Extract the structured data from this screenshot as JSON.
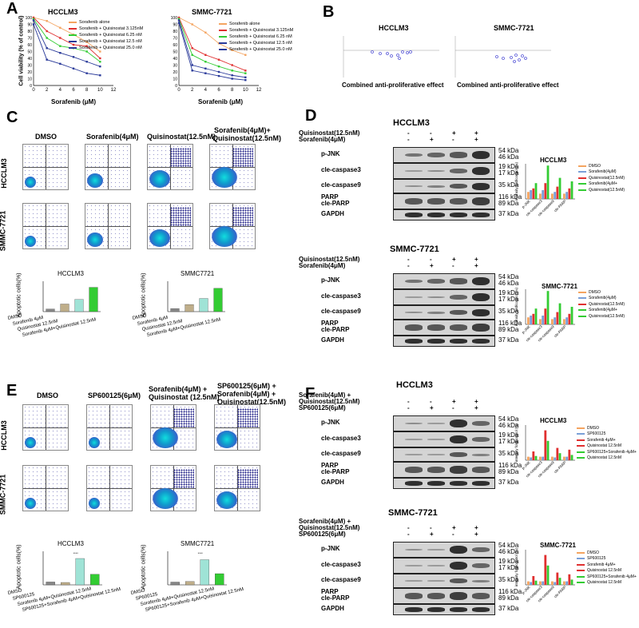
{
  "panels": {
    "A": "A",
    "B": "B",
    "C": "C",
    "D": "D",
    "E": "E",
    "F": "F"
  },
  "panelA": {
    "charts": [
      {
        "title": "HCCLM3",
        "ylabel": "Cell viability (% of control)",
        "xlabel": "Sorafenib (μM)",
        "yticks": [
          "0",
          "10",
          "20",
          "30",
          "40",
          "50",
          "60",
          "70",
          "80",
          "90",
          "100"
        ],
        "xticks": [
          "0",
          "2",
          "4",
          "6",
          "8",
          "10",
          "12"
        ]
      },
      {
        "title": "SMMC-7721",
        "ylabel": "",
        "xlabel": "Sorafenib (μM)",
        "yticks": [
          "0",
          "10",
          "20",
          "30",
          "40",
          "50",
          "60",
          "70",
          "80",
          "90",
          "100"
        ],
        "xticks": [
          "0",
          "2",
          "4",
          "6",
          "8",
          "10",
          "12"
        ]
      }
    ],
    "legend": [
      "Sorafenib alone",
      "Sorafenib + Quisinostat 3.125nM",
      "Sorafenib + Quisinostat 6.25 nM",
      "Sorafenib + Quisinostat 12.5 nM",
      "Sorafenib + Quisinostat 25.0 nM"
    ],
    "legend2": [
      "Sorafenib  alone",
      "Sorafenib + Quisinostat 3.125nM",
      "Sorafenib + Quisinostat 6.25 nM",
      "Sorafenib + Quisinostat 12.5 nM",
      "Sorafenib + Quisinostat 25.0 nM"
    ]
  },
  "panelB": {
    "titles": [
      "HCCLM3",
      "SMMC-7721"
    ],
    "xlabel": "Combined anti-proliferative effect"
  },
  "panelC": {
    "cols": [
      "DMSO",
      "Sorafenib(4μM)",
      "Quisinostat(12.5nM)",
      "Sorafenib(4μM)+",
      "Quisinostat(12.5nM)"
    ],
    "rows": [
      "HCCLM3",
      "SMMC-7721"
    ],
    "bar_titles": [
      "HCCLM3",
      "SMMC7721"
    ],
    "ylabel": "Apoptotic cells(%)",
    "cats": [
      "DMSO",
      "Sorafenib 4μM",
      "Quisinostat 12.5nM",
      "Sorafenib 4μM+Quisinostat 12.5nM"
    ]
  },
  "panelD": {
    "titles": [
      "HCCLM3",
      "SMMC-7721"
    ],
    "treat": [
      "Quisinostat(12.5nM)",
      "Sorafenib(4μM)"
    ],
    "signs1": [
      "-",
      "-",
      "+",
      "+"
    ],
    "signs2": [
      "-",
      "+",
      "-",
      "+"
    ],
    "rows": [
      "p-JNK",
      "cle-caspase3",
      "cle-caspase9",
      "PARP",
      "cle-PARP",
      "GAPDH"
    ],
    "kda": [
      "54 kDa",
      "46 kDa",
      "19 kDa",
      "17 kDa",
      "35 kDa",
      "116 kDa",
      "89 kDa",
      "37 kDa"
    ],
    "ylabel": "intensity fold/control (%)",
    "legend": [
      "DMSO",
      "Sorafenib(4μM)",
      "Quisinostat(12.5nM)",
      "Sorafenib(4μM+",
      "Quisinostat(12.5nM)"
    ]
  },
  "panelE": {
    "cols": [
      "DMSO",
      "SP600125(6μM)",
      "Sorafenib(4μM) +",
      "Quisinostat (12.5nM)",
      "SP600125(6μM) +",
      "Sorafenib(4μM) +",
      "Quisinostat(12.5nM)"
    ],
    "rows": [
      "HCCLM3",
      "SMMC-7721"
    ],
    "bar_titles": [
      "HCCLM3",
      "SMMC7721"
    ],
    "ylabel": "Apoptotic cells(%)",
    "cats": [
      "DMSO",
      "SP600125",
      "Sorafenib 4μM+Quisinostat 12.5nM",
      "SP600125+Sorafenib 4μM+Quisinostat 12.5nM"
    ],
    "sig": "****"
  },
  "panelF": {
    "titles": [
      "HCCLM3",
      "SMMC-7721"
    ],
    "treat": [
      "Sorafenib(4μM) +",
      "Quisinostat(12.5nM)",
      "SP600125(6μM)"
    ],
    "signs1": [
      "-",
      "-",
      "+",
      "+"
    ],
    "signs2": [
      "-",
      "+",
      "-",
      "+"
    ],
    "rows": [
      "p-JNK",
      "cle-caspase3",
      "cle-caspase9",
      "PARP",
      "cle-PARP",
      "GAPDH"
    ],
    "kda": [
      "54 kDa",
      "46 kDa",
      "19 kDa",
      "17 kDa",
      "35 kDa",
      "116 kDa",
      "89 kDa",
      "37 kDa"
    ],
    "ylabel": "intensity fold/control (%)",
    "legend": [
      "DMSO",
      "SP600125",
      "Sorafenib 4μM+",
      "Quisinostat 12.5nM",
      "SP600125+Sorafenib 4μM+",
      "Quisinostat 12.5nM"
    ],
    "xcats": [
      "p-JNK",
      "cle-caspase3",
      "cle-caspase9",
      "cle-PARP"
    ]
  },
  "colors": {
    "orange": "#f4a460",
    "red": "#e03030",
    "green": "#33cc33",
    "blue": "#2a3a9a",
    "lightblue": "#7aa0d8",
    "gray": "#888888",
    "tan": "#bfae8a"
  },
  "chart_data": [
    {
      "type": "line",
      "title": "HCCLM3",
      "xlabel": "Sorafenib (μM)",
      "ylabel": "Cell viability (% of control)",
      "ylim": [
        0,
        100
      ],
      "xlim": [
        0,
        12
      ],
      "x": [
        0,
        2,
        4,
        6,
        8,
        10
      ],
      "series": [
        {
          "name": "Sorafenib alone",
          "values": [
            100,
            95,
            85,
            75,
            64,
            50
          ]
        },
        {
          "name": "Sorafenib + Quisinostat 3.125nM",
          "values": [
            100,
            80,
            70,
            60,
            58,
            40
          ]
        },
        {
          "name": "Sorafenib + Quisinostat 6.25 nM",
          "values": [
            98,
            70,
            58,
            55,
            50,
            35
          ]
        },
        {
          "name": "Sorafenib + Quisinostat 12.5 nM",
          "values": [
            96,
            55,
            48,
            42,
            35,
            28
          ]
        },
        {
          "name": "Sorafenib + Quisinostat 25.0 nM",
          "values": [
            90,
            38,
            32,
            25,
            18,
            15
          ]
        }
      ]
    },
    {
      "type": "line",
      "title": "SMMC-7721",
      "xlabel": "Sorafenib (μM)",
      "ylabel": "",
      "ylim": [
        0,
        100
      ],
      "xlim": [
        0,
        12
      ],
      "x": [
        0,
        2,
        4,
        6,
        8,
        10
      ],
      "series": [
        {
          "name": "Sorafenib  alone",
          "values": [
            100,
            90,
            78,
            62,
            52,
            45
          ]
        },
        {
          "name": "Sorafenib + Quisinostat 3.125nM",
          "values": [
            100,
            55,
            45,
            38,
            30,
            22
          ]
        },
        {
          "name": "Sorafenib + Quisinostat 6.25 nM",
          "values": [
            98,
            45,
            35,
            28,
            22,
            18
          ]
        },
        {
          "name": "Sorafenib + Quisinostat 12.5 nM",
          "values": [
            96,
            30,
            25,
            20,
            15,
            12
          ]
        },
        {
          "name": "Sorafenib + Quisinostat 25.0 nM",
          "values": [
            92,
            22,
            18,
            14,
            10,
            8
          ]
        }
      ]
    },
    {
      "type": "bar",
      "title": "HCCLM3",
      "ylabel": "Apoptotic cells(%)",
      "categories": [
        "DMSO",
        "Sorafenib 4μM",
        "Quisinostat 12.5nM",
        "Sorafenib 4μM+Quisinostat 12.5nM"
      ],
      "values": [
        5,
        15,
        24,
        48
      ],
      "ylim": [
        0,
        60
      ]
    },
    {
      "type": "bar",
      "title": "SMMC7721",
      "ylabel": "Apoptotic cells(%)",
      "categories": [
        "DMSO",
        "Sorafenib 4μM",
        "Quisinostat 12.5nM",
        "Sorafenib 4μM+Quisinostat 12.5nM"
      ],
      "values": [
        6,
        14,
        26,
        46
      ],
      "ylim": [
        0,
        60
      ]
    },
    {
      "type": "bar",
      "title": "HCCLM3",
      "ylabel": "Apoptotic cells(%)",
      "categories": [
        "DMSO",
        "SP600125",
        "Sorafenib 4μM+Quisinostat 12.5nM",
        "SP600125+Sorafenib 4μM+Quisinostat 12.5nM"
      ],
      "values": [
        6,
        5,
        55,
        22
      ],
      "ylim": [
        0,
        70
      ]
    },
    {
      "type": "bar",
      "title": "SMMC7721",
      "ylabel": "Apoptotic cells(%)",
      "categories": [
        "DMSO",
        "SP600125",
        "Sorafenib 4μM+Quisinostat 12.5nM",
        "SP600125+Sorafenib 4μM+Quisinostat 12.5nM"
      ],
      "values": [
        5,
        6,
        45,
        20
      ],
      "ylim": [
        0,
        60
      ]
    }
  ]
}
